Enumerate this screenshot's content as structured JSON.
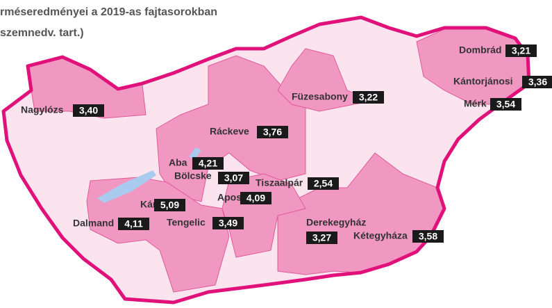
{
  "title": {
    "line1": "rméseredményei a 2019-as fajtasorokban",
    "line2": "szemnedv. tart.)"
  },
  "locations": [
    {
      "name": "Nagylózs",
      "value": "3,40"
    },
    {
      "name": "Dombrád",
      "value": "3,21"
    },
    {
      "name": "Kántorjánosi",
      "value": "3,36"
    },
    {
      "name": "Mérk",
      "value": "3,54"
    },
    {
      "name": "Füzesabony",
      "value": "3,22"
    },
    {
      "name": "Ráckeve",
      "value": "3,76"
    },
    {
      "name": "Aba",
      "value": "4,21"
    },
    {
      "name": "Bölcske",
      "value": "3,07"
    },
    {
      "name": "Tiszaalpár",
      "value": "2,54"
    },
    {
      "name": "Apostag",
      "value": "4,09"
    },
    {
      "name": "Kánya",
      "value": "5,09"
    },
    {
      "name": "Dalmand",
      "value": "4,11"
    },
    {
      "name": "Tengelic",
      "value": "3,49"
    },
    {
      "name": "Derekegyház",
      "value": "3,27"
    },
    {
      "name": "Kétegyháza",
      "value": "3,58"
    }
  ]
}
